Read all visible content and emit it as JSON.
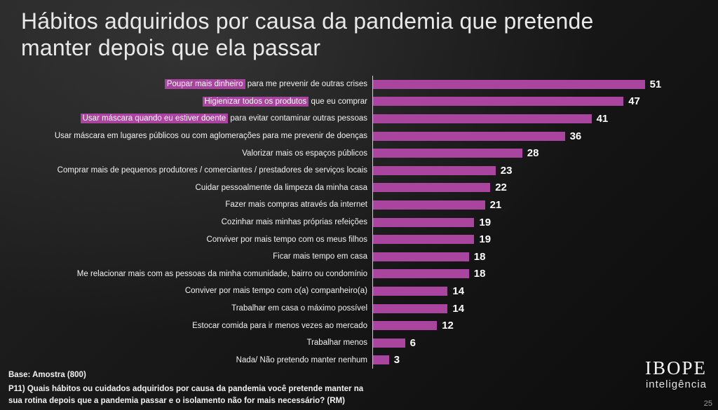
{
  "title": {
    "line1": "Hábitos adquiridos por causa da pandemia que pretende",
    "line2": "manter depois que ela passar"
  },
  "colors": {
    "bar": "#a9449f",
    "highlight_box": "#a9449f",
    "background": "#141414",
    "text": "#ffffff",
    "axis": "#cfcfcf"
  },
  "chart_data": {
    "type": "bar",
    "orientation": "horizontal",
    "title": "Hábitos adquiridos por causa da pandemia que pretende manter depois que ela passar",
    "xlabel": "",
    "ylabel": "",
    "xlim": [
      0,
      55
    ],
    "grid": false,
    "legend": "none",
    "categories": [
      "Poupar mais dinheiro para me prevenir de outras crises",
      "Higienizar todos os produtos que eu comprar",
      "Usar máscara quando eu estiver doente para evitar contaminar outras pessoas",
      "Usar máscara em lugares públicos ou com aglomerações para me prevenir de doenças",
      "Valorizar mais os espaços públicos",
      "Comprar mais de pequenos produtores / comerciantes / prestadores de serviços locais",
      "Cuidar pessoalmente da limpeza da minha casa",
      "Fazer mais compras através da internet",
      "Cozinhar mais minhas próprias refeições",
      "Conviver por mais tempo com os meus filhos",
      "Ficar mais tempo em casa",
      "Me relacionar mais com as pessoas da minha comunidade, bairro ou condomínio",
      "Conviver por mais tempo com o(a) companheiro(a)",
      "Trabalhar em casa o máximo possível",
      "Estocar comida para ir menos vezes ao mercado",
      "Trabalhar menos",
      "Nada/ Não pretendo manter nenhum"
    ],
    "values": [
      51,
      47,
      41,
      36,
      28,
      23,
      22,
      21,
      19,
      19,
      18,
      18,
      14,
      14,
      12,
      6,
      3
    ],
    "highlighted_label_parts": [
      "Poupar mais dinheiro",
      "Higienizar todos os produtos",
      "Usar máscara quando eu estiver doente",
      "",
      "",
      "",
      "",
      "",
      "",
      "",
      "",
      "",
      "",
      "",
      "",
      "",
      ""
    ]
  },
  "footer": {
    "base": "Base: Amostra (800)",
    "question_line1": "P11) Quais hábitos ou cuidados adquiridos por causa da pandemia você pretende manter na",
    "question_line2": "sua rotina depois que a pandemia passar e o isolamento não for mais necessário? (RM)"
  },
  "branding": {
    "logo_text": "IBOPE",
    "logo_subtext": "inteligência",
    "page_number": "25"
  }
}
